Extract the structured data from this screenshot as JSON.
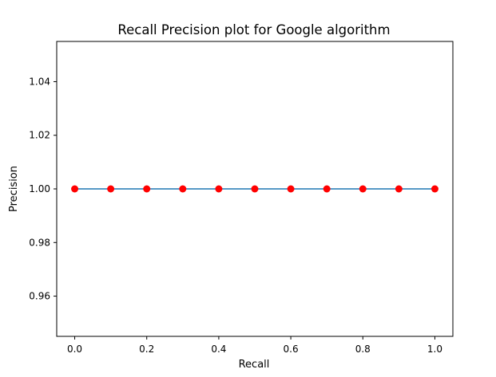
{
  "chart_data": {
    "type": "line",
    "title": "Recall Precision plot for Google algorithm",
    "xlabel": "Recall",
    "ylabel": "Precision",
    "x": [
      0.0,
      0.1,
      0.2,
      0.3,
      0.4,
      0.5,
      0.6,
      0.7,
      0.8,
      0.9,
      1.0
    ],
    "series": [
      {
        "values": [
          1,
          1,
          1,
          1,
          1,
          1,
          1,
          1,
          1,
          1,
          1
        ]
      }
    ],
    "xlim": [
      -0.05,
      1.05
    ],
    "ylim": [
      0.945,
      1.055
    ],
    "xticks": [
      0.0,
      0.2,
      0.4,
      0.6,
      0.8,
      1.0
    ],
    "xtick_labels": [
      "0.0",
      "0.2",
      "0.4",
      "0.6",
      "0.8",
      "1.0"
    ],
    "yticks": [
      0.96,
      0.98,
      1.0,
      1.02,
      1.04
    ],
    "ytick_labels": [
      "0.96",
      "0.98",
      "1.00",
      "1.02",
      "1.04"
    ],
    "line_color": "#1f77b4",
    "marker_color": "#ff0000",
    "grid": false,
    "legend": "none"
  }
}
